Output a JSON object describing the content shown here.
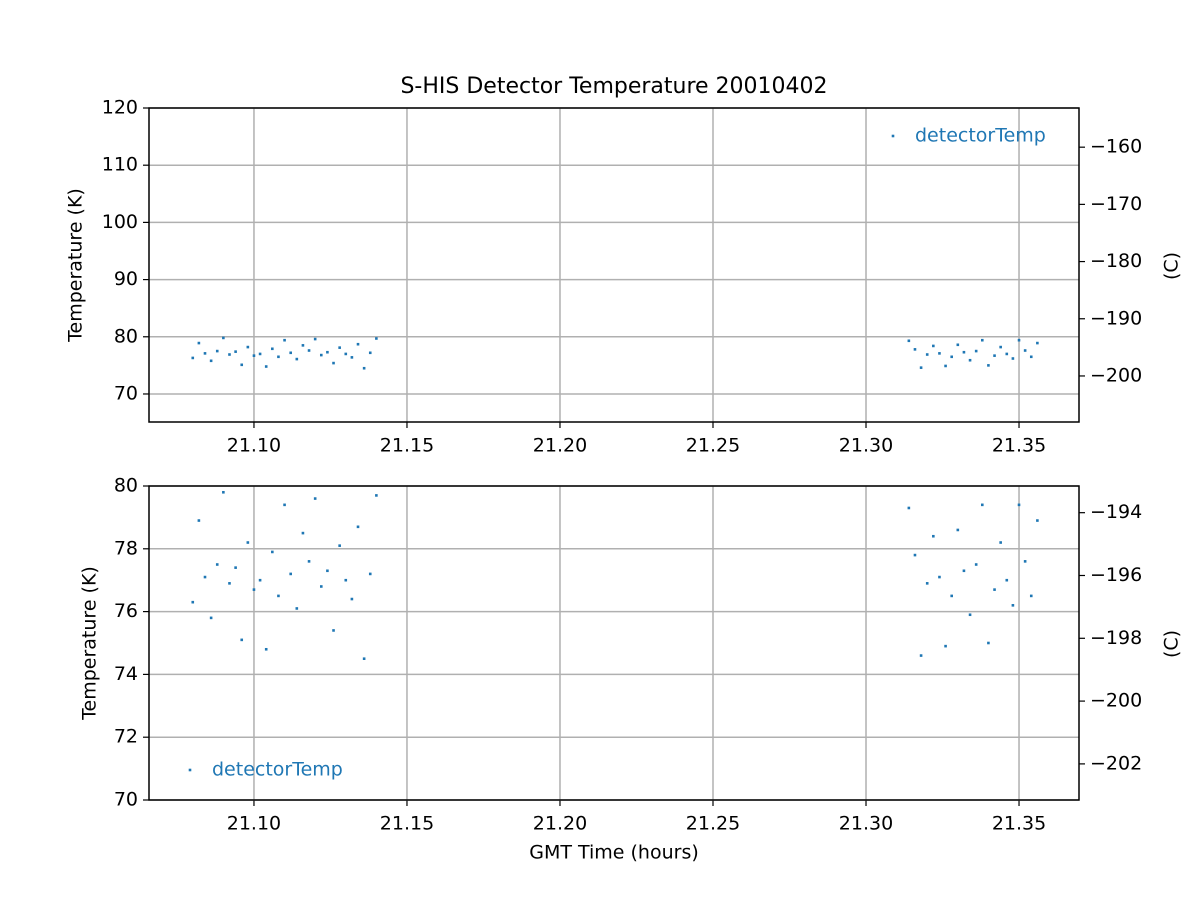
{
  "chart_data": [
    {
      "type": "scatter",
      "title": "S-HIS Detector Temperature 20010402",
      "y_label": "Temperature (K)",
      "y2_label": "(C)",
      "xlim": [
        21.0657,
        21.3696
      ],
      "ylim": [
        65.1,
        120
      ],
      "y2lim": [
        -208.05,
        -153.15
      ],
      "xticks": [
        {
          "value": 21.1,
          "label": "21.10"
        },
        {
          "value": 21.15,
          "label": "21.15"
        },
        {
          "value": 21.2,
          "label": "21.20"
        },
        {
          "value": 21.25,
          "label": "21.25"
        },
        {
          "value": 21.3,
          "label": "21.30"
        },
        {
          "value": 21.35,
          "label": "21.35"
        }
      ],
      "yticks": [
        70,
        80,
        90,
        100,
        110,
        120
      ],
      "y2ticks": [
        -200,
        -190,
        -180,
        -170,
        -160
      ],
      "grid": true,
      "legend": "upper right",
      "series": [
        {
          "name": "detectorTemp",
          "color": "#1f77b4",
          "x": [
            21.08,
            21.082,
            21.084,
            21.086,
            21.088,
            21.09,
            21.092,
            21.094,
            21.096,
            21.098,
            21.1,
            21.102,
            21.104,
            21.106,
            21.108,
            21.11,
            21.112,
            21.114,
            21.116,
            21.118,
            21.12,
            21.122,
            21.124,
            21.126,
            21.128,
            21.13,
            21.132,
            21.134,
            21.136,
            21.138,
            21.14,
            21.314,
            21.316,
            21.318,
            21.32,
            21.322,
            21.324,
            21.326,
            21.328,
            21.33,
            21.332,
            21.334,
            21.336,
            21.338,
            21.34,
            21.342,
            21.344,
            21.346,
            21.348,
            21.35,
            21.352,
            21.354,
            21.356
          ],
          "values": [
            76.3,
            78.9,
            77.1,
            75.8,
            77.5,
            79.8,
            76.9,
            77.4,
            75.1,
            78.2,
            76.7,
            77.0,
            74.8,
            77.9,
            76.5,
            79.4,
            77.2,
            76.1,
            78.5,
            77.6,
            79.6,
            76.8,
            77.3,
            75.4,
            78.1,
            77.0,
            76.4,
            78.7,
            74.5,
            77.2,
            79.7,
            79.3,
            77.8,
            74.6,
            76.9,
            78.4,
            77.1,
            74.9,
            76.5,
            78.6,
            77.3,
            75.9,
            77.5,
            79.4,
            75.0,
            76.7,
            78.2,
            77.0,
            76.2,
            79.4,
            77.6,
            76.5,
            78.9
          ]
        }
      ]
    },
    {
      "type": "scatter",
      "x_label": "GMT Time (hours)",
      "y_label": "Temperature (K)",
      "y2_label": "(C)",
      "xlim": [
        21.0657,
        21.3696
      ],
      "ylim": [
        70,
        80
      ],
      "y2lim": [
        -203.15,
        -193.15
      ],
      "xticks": [
        {
          "value": 21.1,
          "label": "21.10"
        },
        {
          "value": 21.15,
          "label": "21.15"
        },
        {
          "value": 21.2,
          "label": "21.20"
        },
        {
          "value": 21.25,
          "label": "21.25"
        },
        {
          "value": 21.3,
          "label": "21.30"
        },
        {
          "value": 21.35,
          "label": "21.35"
        }
      ],
      "yticks": [
        70,
        72,
        74,
        76,
        78,
        80
      ],
      "y2ticks": [
        -202,
        -200,
        -198,
        -196,
        -194
      ],
      "grid": true,
      "legend": "lower left",
      "series": [
        {
          "name": "detectorTemp",
          "color": "#1f77b4",
          "x": [
            21.08,
            21.082,
            21.084,
            21.086,
            21.088,
            21.09,
            21.092,
            21.094,
            21.096,
            21.098,
            21.1,
            21.102,
            21.104,
            21.106,
            21.108,
            21.11,
            21.112,
            21.114,
            21.116,
            21.118,
            21.12,
            21.122,
            21.124,
            21.126,
            21.128,
            21.13,
            21.132,
            21.134,
            21.136,
            21.138,
            21.14,
            21.314,
            21.316,
            21.318,
            21.32,
            21.322,
            21.324,
            21.326,
            21.328,
            21.33,
            21.332,
            21.334,
            21.336,
            21.338,
            21.34,
            21.342,
            21.344,
            21.346,
            21.348,
            21.35,
            21.352,
            21.354,
            21.356
          ],
          "values": [
            76.3,
            78.9,
            77.1,
            75.8,
            77.5,
            79.8,
            76.9,
            77.4,
            75.1,
            78.2,
            76.7,
            77.0,
            74.8,
            77.9,
            76.5,
            79.4,
            77.2,
            76.1,
            78.5,
            77.6,
            79.6,
            76.8,
            77.3,
            75.4,
            78.1,
            77.0,
            76.4,
            78.7,
            74.5,
            77.2,
            79.7,
            79.3,
            77.8,
            74.6,
            76.9,
            78.4,
            77.1,
            74.9,
            76.5,
            78.6,
            77.3,
            75.9,
            77.5,
            79.4,
            75.0,
            76.7,
            78.2,
            77.0,
            76.2,
            79.4,
            77.6,
            76.5,
            78.9
          ]
        }
      ]
    }
  ]
}
